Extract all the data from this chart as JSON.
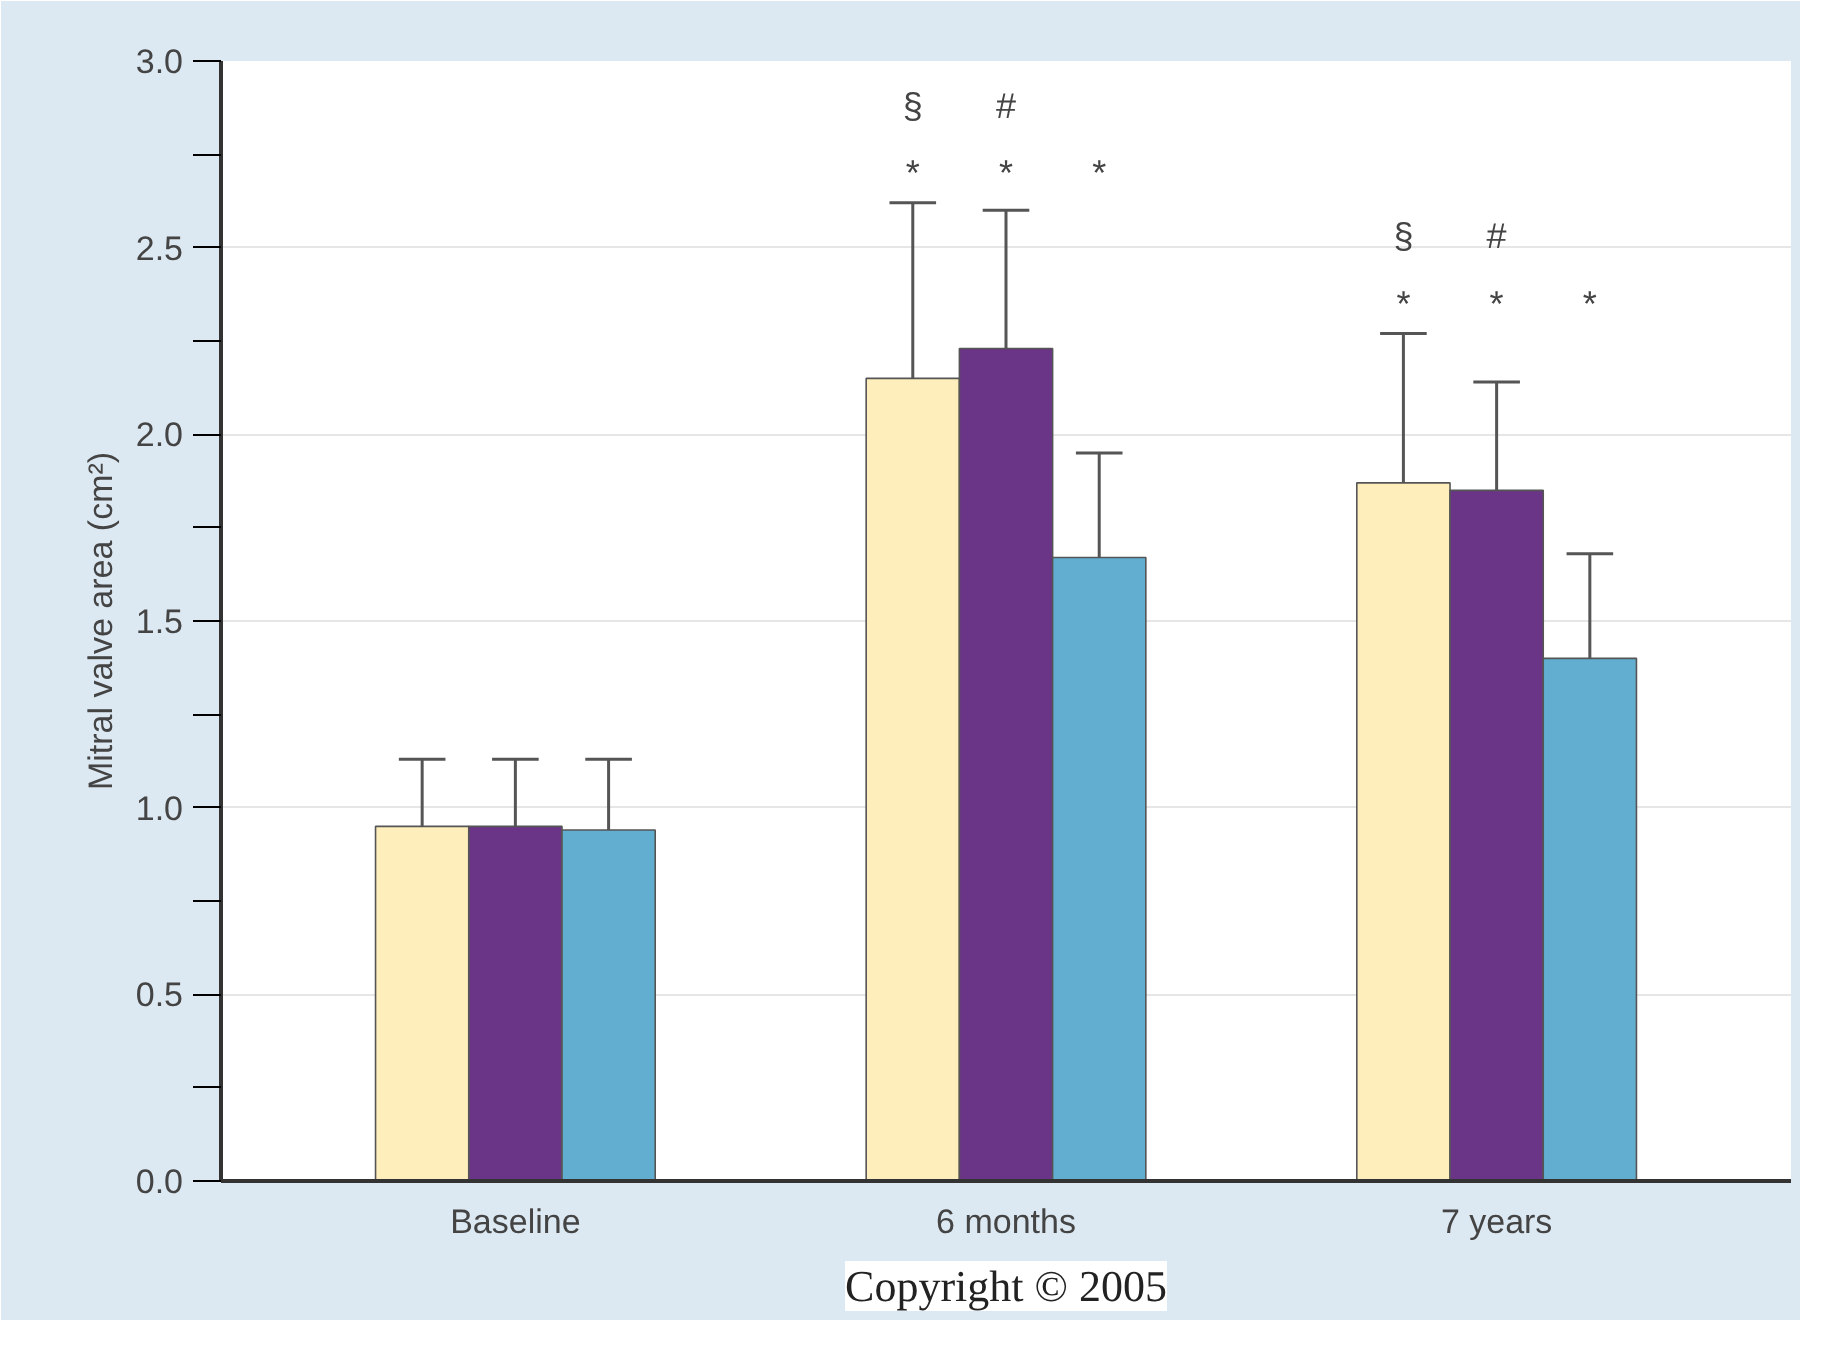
{
  "chart_data": {
    "type": "bar",
    "ylabel": "Mitral valve area (cm²)",
    "categories": [
      "Baseline",
      "6 months",
      "7 years"
    ],
    "series": [
      {
        "color": "#fdeebb",
        "values": [
          0.95,
          2.15,
          1.87
        ],
        "errors": [
          [
            0.95,
            1.13
          ],
          [
            2.15,
            2.62
          ],
          [
            1.87,
            2.27
          ]
        ]
      },
      {
        "color": "#6b3587",
        "values": [
          0.95,
          2.23,
          1.85
        ],
        "errors": [
          [
            0.95,
            1.13
          ],
          [
            2.23,
            2.6
          ],
          [
            1.85,
            2.14
          ]
        ]
      },
      {
        "color": "#62aed0",
        "values": [
          0.94,
          1.67,
          1.4
        ],
        "errors": [
          [
            0.94,
            1.13
          ],
          [
            1.67,
            1.95
          ],
          [
            1.4,
            1.68
          ]
        ]
      }
    ],
    "ylim": [
      0,
      3.0
    ],
    "yticks": [
      {
        "value": 0,
        "label": "0.0"
      },
      {
        "value": 0.25,
        "label": null
      },
      0.5,
      {
        "value": 0.75,
        "label": null
      },
      {
        "value": 1,
        "label": "1.0"
      },
      {
        "value": 1.25,
        "label": null
      },
      1.5,
      {
        "value": 1.75,
        "label": null
      },
      {
        "value": 2,
        "label": "2.0"
      },
      {
        "value": 2.25,
        "label": null
      },
      2.5,
      {
        "value": 2.75,
        "label": null
      },
      {
        "value": 3,
        "label": "3.0"
      }
    ],
    "grid": "y",
    "annotations": [
      "§",
      "#",
      "*",
      "*",
      "*",
      "§",
      "#",
      "*",
      "*",
      "*",
      "Copyright © 2005"
    ]
  }
}
